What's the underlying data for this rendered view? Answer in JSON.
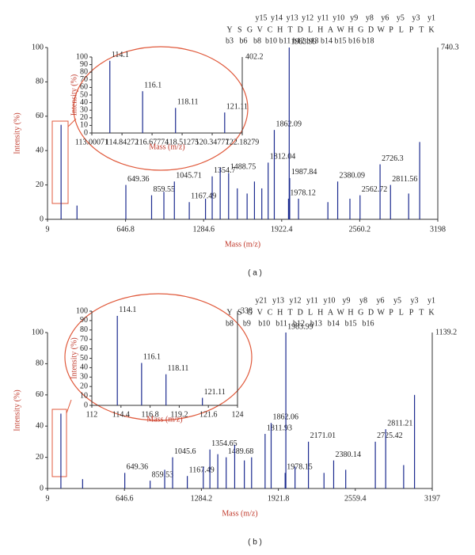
{
  "chart_data": [
    {
      "type": "stem",
      "caption": "( a )",
      "ylabel": "Intensity (%)",
      "xlabel": "Mass (m/z)",
      "max_label": "740.3",
      "xlim": [
        9,
        3198
      ],
      "xticks": [
        9,
        646.8,
        1284.6,
        1922.4,
        2560.2,
        3198
      ],
      "ylim": [
        0,
        100
      ],
      "yticks": [
        0,
        20,
        40,
        60,
        80,
        100
      ],
      "color": "#1b2a8f",
      "label_color": "#8b1a1a",
      "x": [
        649.36,
        859.55,
        1045.71,
        1167.49,
        1354.7,
        1488.75,
        1812.04,
        1862.09,
        1983.99,
        1987.84,
        1978.12,
        2380.09,
        2562.72,
        2726.3,
        2811.56
      ],
      "values": [
        20,
        14,
        22,
        10,
        25,
        27,
        33,
        52,
        100,
        24,
        12,
        22,
        14,
        32,
        20
      ],
      "other_peaks": {
        "x": [
          120,
          250,
          960,
          1300,
          1420,
          1560,
          1640,
          1700,
          1760,
          2060,
          2300,
          2480,
          2960,
          3050
        ],
        "values": [
          55,
          8,
          16,
          12,
          30,
          18,
          15,
          22,
          18,
          12,
          10,
          12,
          15,
          45
        ]
      },
      "sequence": [
        "Y",
        "S",
        "G",
        "V",
        "C",
        "H",
        "T",
        "D",
        "L",
        "H",
        "A",
        "W",
        "H",
        "G",
        "D",
        "W",
        "P",
        "L",
        "P",
        "T",
        "K"
      ],
      "y_ions": [
        "y15",
        "y14",
        "y13",
        "y12",
        "y11",
        "y10",
        "y9",
        "y8",
        "y6",
        "y5",
        "y3",
        "y1"
      ],
      "b_ions": [
        "b3",
        "b6",
        "b8",
        "b10",
        "b11",
        "b12",
        "b13",
        "b14",
        "b15",
        "b16",
        "b18"
      ],
      "inset": {
        "ylabel": "Intensity (%)",
        "xlabel": "Mass (m/z)",
        "max_label": "402.2",
        "xlim": [
          113.00071,
          122.18279
        ],
        "xticks": [
          113.00071,
          114.84272,
          116.67774,
          118.51275,
          120.34777,
          122.18279
        ],
        "ylim": [
          0,
          100
        ],
        "yticks": [
          0,
          10,
          20,
          30,
          40,
          50,
          60,
          70,
          80,
          90,
          100
        ],
        "x": [
          114.1,
          116.1,
          118.11,
          121.11
        ],
        "values": [
          95,
          55,
          33,
          27
        ]
      }
    },
    {
      "type": "stem",
      "caption": "( b )",
      "ylabel": "Intensity (%)",
      "xlabel": "Mass (m/z)",
      "max_label": "1139.2",
      "xlim": [
        9,
        3197
      ],
      "xticks": [
        9,
        646.6,
        1284.2,
        1921.8,
        2559.4,
        3197
      ],
      "ylim": [
        0,
        100
      ],
      "yticks": [
        0,
        20,
        40,
        60,
        80,
        100
      ],
      "color": "#1b2a8f",
      "label_color": "#8b1a1a",
      "x": [
        649.36,
        859.53,
        1045.6,
        1167.49,
        1354.65,
        1489.68,
        1811.93,
        1862.06,
        1978.15,
        1983.99,
        2171.01,
        2380.14,
        2725.42,
        2811.21
      ],
      "values": [
        10,
        5,
        20,
        8,
        25,
        20,
        35,
        42,
        10,
        100,
        30,
        18,
        30,
        38
      ],
      "other_peaks": {
        "x": [
          120,
          300,
          980,
          1300,
          1420,
          1560,
          1640,
          1700,
          2060,
          2300,
          2480,
          2960,
          3050
        ],
        "values": [
          48,
          6,
          12,
          14,
          22,
          28,
          18,
          20,
          14,
          10,
          12,
          15,
          60
        ]
      },
      "sequence": [
        "Y",
        "S",
        "G",
        "V",
        "C",
        "H",
        "T",
        "D",
        "L",
        "H",
        "A",
        "W",
        "H",
        "G",
        "D",
        "W",
        "P",
        "L",
        "P",
        "T",
        "K"
      ],
      "y_ions": [
        "y21",
        "y13",
        "y12",
        "y11",
        "y10",
        "y9",
        "y8",
        "y6",
        "y5",
        "y3",
        "y1"
      ],
      "b_ions": [
        "b8",
        "b9",
        "b10",
        "b11",
        "b12",
        "b13",
        "b14",
        "b15",
        "b16"
      ],
      "inset": {
        "ylabel": "Intensity (%)",
        "xlabel": "Mass (m/z)",
        "max_label": "338",
        "xlim": [
          112,
          124
        ],
        "xticks": [
          112,
          114.4,
          116.8,
          119.2,
          121.6,
          124
        ],
        "ylim": [
          0,
          100
        ],
        "yticks": [
          0,
          10,
          20,
          30,
          40,
          50,
          60,
          70,
          80,
          90,
          100
        ],
        "x": [
          114.1,
          116.1,
          118.11,
          121.11
        ],
        "values": [
          95,
          45,
          33,
          8
        ]
      }
    }
  ]
}
